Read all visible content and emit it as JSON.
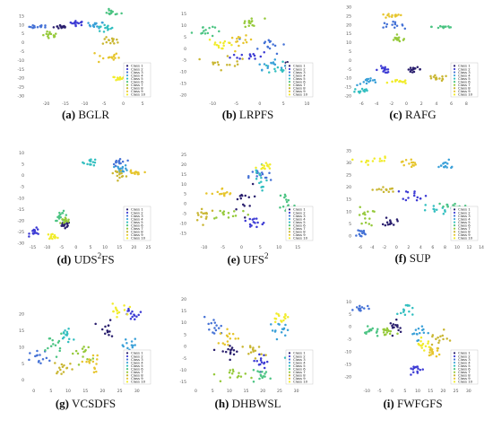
{
  "classes": [
    "Class 1",
    "Class 2",
    "Class 3",
    "Class 4",
    "Class 5",
    "Class 6",
    "Class 7",
    "Class 8",
    "Class 9",
    "Class 10"
  ],
  "colors": {
    "palette": [
      "#2a1f6e",
      "#3d3bd4",
      "#4572d6",
      "#3aa0d8",
      "#33bfc0",
      "#4cc483",
      "#95c93a",
      "#c9b632",
      "#e6c52d",
      "#f1ec2c"
    ]
  },
  "panels": [
    {
      "id": "a",
      "letter": "(a)",
      "name": "BGLR",
      "sup": ""
    },
    {
      "id": "b",
      "letter": "(b)",
      "name": "LRPFS",
      "sup": ""
    },
    {
      "id": "c",
      "letter": "(c)",
      "name": "RAFG",
      "sup": ""
    },
    {
      "id": "d",
      "letter": "(d)",
      "name": "UDS",
      "sup": "2",
      "tail": "FS"
    },
    {
      "id": "e",
      "letter": "(e)",
      "name": "UFS",
      "sup": "2"
    },
    {
      "id": "f",
      "letter": "(f)",
      "name": "SUP",
      "sup": ""
    },
    {
      "id": "g",
      "letter": "(g)",
      "name": "VCSDFS",
      "sup": ""
    },
    {
      "id": "h",
      "letter": "(h)",
      "name": "DHBWSL",
      "sup": ""
    },
    {
      "id": "i",
      "letter": "(i)",
      "name": "FWFGFS",
      "sup": ""
    }
  ],
  "chart_data": [
    {
      "type": "scatter",
      "panel": "BGLR",
      "xlim": [
        -25,
        8
      ],
      "ylim": [
        -32,
        20
      ],
      "xticks": [
        -20,
        -15,
        -10,
        -5,
        0,
        5
      ],
      "yticks": [
        15,
        10,
        5,
        0,
        -5,
        -10,
        -15,
        -20,
        -25,
        -30
      ],
      "clusters": [
        [
          -16,
          9,
          1.0,
          0.6
        ],
        [
          -12,
          11,
          1.0,
          0.6
        ],
        [
          -22,
          9,
          1.2,
          0.5
        ],
        [
          -7,
          10,
          1.0,
          0.9
        ],
        [
          -5,
          8,
          1.2,
          1.2
        ],
        [
          -3,
          17,
          1.2,
          0.8
        ],
        [
          -19,
          4,
          1.0,
          1.2
        ],
        [
          -3,
          1,
          1.2,
          1.0
        ],
        [
          -4,
          -8,
          1.5,
          2.0
        ],
        [
          -2,
          -20,
          1.5,
          0.6
        ]
      ],
      "legend_pos": "bottom-right"
    },
    {
      "type": "scatter",
      "panel": "LRPFS",
      "xlim": [
        -15,
        12
      ],
      "ylim": [
        -22,
        18
      ],
      "xticks": [
        -10,
        -5,
        0,
        5,
        10
      ],
      "yticks": [
        15,
        10,
        5,
        0,
        -5,
        -10,
        -15,
        -20
      ],
      "clusters": [
        [
          7,
          -7,
          1.5,
          1.2
        ],
        [
          -2,
          -3,
          2.0,
          1.0
        ],
        [
          2,
          2,
          1.8,
          2.0
        ],
        [
          2,
          -7,
          1.5,
          1.0
        ],
        [
          5,
          -9,
          2.0,
          1.5
        ],
        [
          -12,
          8,
          1.2,
          1.5
        ],
        [
          -2,
          11,
          1.5,
          1.2
        ],
        [
          -7,
          -5,
          2.0,
          2.0
        ],
        [
          -4,
          3,
          1.2,
          1.2
        ],
        [
          -8,
          2,
          1.5,
          1.5
        ]
      ],
      "legend_pos": "bottom-right"
    },
    {
      "type": "scatter",
      "panel": "RAFG",
      "xlim": [
        -7,
        10
      ],
      "ylim": [
        -22,
        30
      ],
      "xticks": [
        -6,
        -4,
        -2,
        0,
        2,
        4,
        6,
        8
      ],
      "yticks": [
        30,
        25,
        20,
        15,
        10,
        5,
        0,
        -5,
        -10,
        -15,
        -20
      ],
      "clusters": [
        [
          1,
          -5,
          0.5,
          0.6
        ],
        [
          -3,
          -5,
          0.6,
          1.0
        ],
        [
          -2,
          20,
          0.8,
          0.8
        ],
        [
          -5,
          -12,
          0.8,
          1.0
        ],
        [
          -6,
          -17,
          0.6,
          1.0
        ],
        [
          5,
          19,
          0.8,
          0.6
        ],
        [
          -1,
          12,
          0.6,
          0.8
        ],
        [
          4,
          -10,
          0.8,
          0.8
        ],
        [
          -2,
          25,
          0.8,
          0.6
        ],
        [
          -1,
          -12,
          0.6,
          0.5
        ]
      ],
      "legend_pos": "bottom-right"
    },
    {
      "type": "scatter",
      "panel": "UDS2FS",
      "xlim": [
        -17,
        27
      ],
      "ylim": [
        -30,
        11
      ],
      "xticks": [
        -15,
        -10,
        -5,
        0,
        5,
        10,
        15,
        20,
        25
      ],
      "yticks": [
        10,
        5,
        0,
        -5,
        -10,
        -15,
        -20,
        -25,
        -30
      ],
      "clusters": [
        [
          -4,
          -22,
          1.0,
          0.8
        ],
        [
          -14,
          -25,
          1.0,
          0.8
        ],
        [
          15,
          6,
          1.2,
          1.0
        ],
        [
          16,
          3,
          1.0,
          0.8
        ],
        [
          5,
          6,
          1.2,
          0.8
        ],
        [
          -5,
          -18,
          1.2,
          1.0
        ],
        [
          -4,
          -20,
          1.0,
          0.8
        ],
        [
          15,
          1,
          1.0,
          0.8
        ],
        [
          20,
          1,
          1.2,
          0.6
        ],
        [
          -8,
          -27,
          1.0,
          0.6
        ]
      ],
      "legend_pos": "bottom-right"
    },
    {
      "type": "scatter",
      "panel": "UFS2",
      "xlim": [
        -14,
        20
      ],
      "ylim": [
        -20,
        27
      ],
      "xticks": [
        -10,
        -5,
        0,
        5,
        10,
        15
      ],
      "yticks": [
        25,
        20,
        15,
        10,
        5,
        0,
        -5,
        -10,
        -15
      ],
      "clusters": [
        [
          0,
          2,
          1.5,
          4.0
        ],
        [
          3,
          -10,
          2.0,
          1.5
        ],
        [
          5,
          14,
          1.5,
          2.0
        ],
        [
          15,
          -10,
          1.5,
          0.8
        ],
        [
          5,
          12,
          1.0,
          6.0
        ],
        [
          12,
          1,
          1.0,
          3.0
        ],
        [
          -3,
          -5,
          3.0,
          1.5
        ],
        [
          -10,
          -5,
          1.5,
          2.0
        ],
        [
          -5,
          5,
          1.5,
          1.5
        ],
        [
          6,
          19,
          1.0,
          1.0
        ]
      ],
      "legend_pos": "bottom-right"
    },
    {
      "type": "scatter",
      "panel": "SUP",
      "xlim": [
        -7,
        14
      ],
      "ylim": [
        -3,
        35
      ],
      "xticks": [
        -6,
        -4,
        -2,
        0,
        2,
        4,
        6,
        8,
        10,
        12,
        14
      ],
      "yticks": [
        35,
        30,
        25,
        20,
        15,
        10,
        5,
        0
      ],
      "clusters": [
        [
          -1,
          6,
          0.5,
          1.0
        ],
        [
          3,
          17,
          1.0,
          1.2
        ],
        [
          -6,
          1,
          0.6,
          1.0
        ],
        [
          8,
          29,
          1.0,
          1.0
        ],
        [
          6,
          11,
          1.5,
          1.0
        ],
        [
          9,
          12,
          1.5,
          0.8
        ],
        [
          -5,
          8,
          0.6,
          2.0
        ],
        [
          -2,
          19,
          1.0,
          0.6
        ],
        [
          2,
          30,
          0.6,
          1.0
        ],
        [
          -4,
          31,
          1.5,
          0.8
        ]
      ],
      "legend_pos": "bottom-right"
    },
    {
      "type": "scatter",
      "panel": "VCSDFS",
      "xlim": [
        -2,
        35
      ],
      "ylim": [
        -2,
        26
      ],
      "xticks": [
        0,
        5,
        10,
        15,
        20,
        25,
        30
      ],
      "yticks": [
        20,
        15,
        10,
        5,
        0
      ],
      "clusters": [
        [
          21,
          15,
          1.5,
          1.5
        ],
        [
          29,
          20,
          1.5,
          1.0
        ],
        [
          2,
          6,
          1.5,
          1.5
        ],
        [
          28,
          10,
          1.5,
          1.5
        ],
        [
          10,
          14,
          1.5,
          1.5
        ],
        [
          6,
          11,
          1.2,
          1.5
        ],
        [
          14,
          8,
          1.5,
          1.5
        ],
        [
          9,
          4,
          1.5,
          1.0
        ],
        [
          17,
          5,
          1.5,
          1.5
        ],
        [
          24,
          21,
          1.5,
          1.0
        ]
      ],
      "legend_pos": "bottom-right"
    },
    {
      "type": "scatter",
      "panel": "DHBWSL",
      "xlim": [
        -2,
        36
      ],
      "ylim": [
        -17,
        22
      ],
      "xticks": [
        0,
        5,
        10,
        15,
        20,
        25,
        30
      ],
      "yticks": [
        20,
        15,
        10,
        5,
        0,
        -5,
        -10,
        -15
      ],
      "clusters": [
        [
          10,
          -2,
          1.5,
          1.5
        ],
        [
          20,
          -6,
          1.5,
          1.5
        ],
        [
          5,
          8,
          1.5,
          2.0
        ],
        [
          25,
          7,
          1.5,
          1.5
        ],
        [
          30,
          -4,
          1.5,
          1.5
        ],
        [
          20,
          -12,
          2.0,
          1.0
        ],
        [
          13,
          -12,
          2.0,
          1.5
        ],
        [
          17,
          -2,
          1.5,
          1.5
        ],
        [
          10,
          4,
          1.5,
          1.5
        ],
        [
          25,
          12,
          1.5,
          1.0
        ]
      ],
      "legend_pos": "bottom-right"
    },
    {
      "type": "scatter",
      "panel": "FWFGFS",
      "xlim": [
        -15,
        35
      ],
      "ylim": [
        -24,
        13
      ],
      "xticks": [
        -10,
        -5,
        0,
        5,
        10,
        15,
        20,
        25,
        30
      ],
      "yticks": [
        10,
        5,
        0,
        -5,
        -10,
        -15,
        -20
      ],
      "clusters": [
        [
          2,
          0,
          1.5,
          1.2
        ],
        [
          9,
          -17,
          1.5,
          1.0
        ],
        [
          -12,
          7,
          1.5,
          1.0
        ],
        [
          10,
          -2,
          1.5,
          1.5
        ],
        [
          5,
          7,
          1.5,
          1.5
        ],
        [
          -8,
          -2,
          1.5,
          1.0
        ],
        [
          -2,
          -2,
          1.5,
          1.0
        ],
        [
          18,
          -5,
          2.0,
          1.5
        ],
        [
          16,
          -10,
          1.5,
          1.5
        ],
        [
          12,
          -7,
          1.5,
          1.0
        ]
      ],
      "legend_pos": "bottom-right"
    }
  ]
}
